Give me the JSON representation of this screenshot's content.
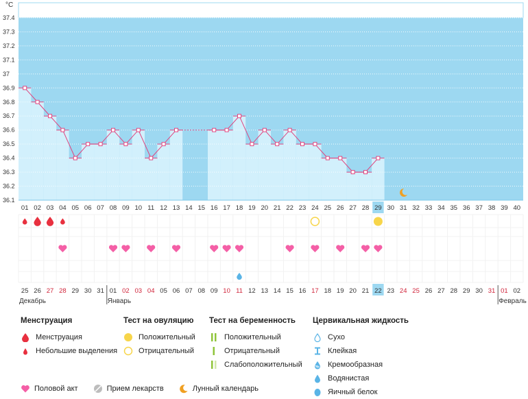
{
  "chart_data": {
    "type": "line",
    "y_unit": "°C",
    "ylim": [
      36.1,
      37.4
    ],
    "y_ticks": [
      "37.4",
      "37.3",
      "37.2",
      "37.1",
      "37",
      "36.9",
      "36.8",
      "36.7",
      "36.6",
      "36.5",
      "36.4",
      "36.3",
      "36.2",
      "36.1"
    ],
    "cycle_days": [
      "01",
      "02",
      "03",
      "04",
      "05",
      "06",
      "07",
      "08",
      "09",
      "10",
      "11",
      "12",
      "13",
      "14",
      "15",
      "16",
      "17",
      "18",
      "19",
      "20",
      "21",
      "22",
      "23",
      "24",
      "25",
      "26",
      "27",
      "28",
      "29",
      "30",
      "31",
      "32",
      "33",
      "34",
      "35",
      "36",
      "37",
      "38",
      "39",
      "40"
    ],
    "highlight_day_index": 28,
    "temperatures": [
      36.9,
      36.8,
      36.7,
      36.6,
      36.4,
      36.5,
      36.5,
      36.6,
      36.5,
      36.6,
      36.4,
      36.5,
      36.6,
      null,
      null,
      36.6,
      36.6,
      36.7,
      36.5,
      36.6,
      36.5,
      36.6,
      36.5,
      36.5,
      36.4,
      36.4,
      36.3,
      36.3,
      36.4
    ],
    "calendar_dates": [
      "25",
      "26",
      "27",
      "28",
      "29",
      "30",
      "31",
      "01",
      "02",
      "03",
      "04",
      "05",
      "06",
      "07",
      "08",
      "09",
      "10",
      "11",
      "12",
      "13",
      "14",
      "15",
      "16",
      "17",
      "18",
      "19",
      "20",
      "21",
      "22",
      "23",
      "24",
      "25",
      "26",
      "27",
      "28",
      "29",
      "30",
      "31",
      "01",
      "02"
    ],
    "red_date_indices": [
      2,
      3,
      8,
      9,
      10,
      16,
      17,
      23,
      30,
      31,
      37,
      38
    ],
    "highlight_date_index": 28,
    "months": [
      {
        "label": "Декабрь",
        "start_index": 0
      },
      {
        "label": "Январь",
        "start_index": 7
      },
      {
        "label": "Февраль",
        "start_index": 38
      }
    ],
    "menstruation": [
      {
        "index": 0,
        "kind": "small"
      },
      {
        "index": 1,
        "kind": "full"
      },
      {
        "index": 2,
        "kind": "full"
      },
      {
        "index": 3,
        "kind": "small"
      }
    ],
    "ovulation_tests": [
      {
        "index": 23,
        "result": "negative"
      },
      {
        "index": 28,
        "result": "positive"
      }
    ],
    "intercourse_days": [
      3,
      7,
      8,
      10,
      12,
      15,
      16,
      17,
      21,
      23,
      25,
      27,
      28
    ],
    "cervical_fluid": [
      {
        "index": 17,
        "kind": "watery"
      }
    ],
    "moon_day_index": 30
  },
  "legend": {
    "menstruation": {
      "title": "Менструация",
      "items": [
        "Менструация",
        "Небольшие выделения"
      ]
    },
    "ovulation": {
      "title": "Тест на овуляцию",
      "items": [
        "Положительный",
        "Отрицательный"
      ]
    },
    "pregnancy": {
      "title": "Тест на беременность",
      "items": [
        "Положительный",
        "Отрицательный",
        "Слабоположительный"
      ]
    },
    "cervical": {
      "title": "Цервикальная жидкость",
      "items": [
        "Сухо",
        "Клейкая",
        "Кремообразная",
        "Водянистая",
        "Яичный белок"
      ]
    },
    "bottom": [
      "Половой акт",
      "Прием лекарств",
      "Лунный календарь"
    ]
  },
  "colors": {
    "plot_bg": "#9dd8f1",
    "bar_fill": "#d2f0fc",
    "line": "#e0457f",
    "heart": "#f45fa6",
    "drop_red": "#e8303f",
    "ovulation": "#f7d54a",
    "fluid": "#5ab4e6",
    "pregnancy_green": "#8fc43a",
    "moon": "#f0a022",
    "red_text": "#d0243a",
    "highlight": "#9dd8f1"
  }
}
